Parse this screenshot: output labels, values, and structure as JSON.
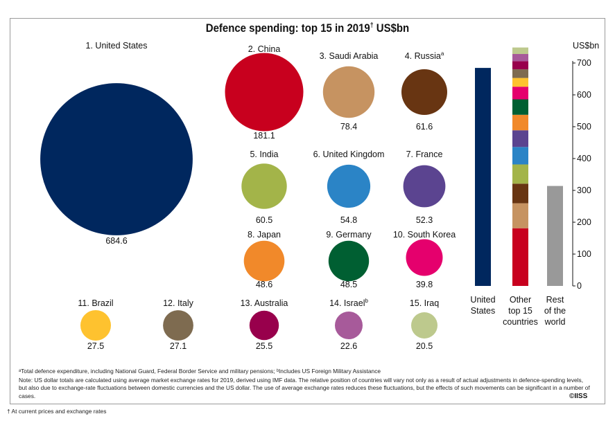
{
  "chart_data": {
    "type": "bubble",
    "title": "Defence spending: top 15 in 2019",
    "title_mark": "†",
    "unit": "US$bn",
    "bubbles": [
      {
        "rank": "1.",
        "name": "United States",
        "mark": "",
        "value": 684.6,
        "color": "#00275e"
      },
      {
        "rank": "2.",
        "name": "China",
        "mark": "",
        "value": 181.1,
        "color": "#c8001e"
      },
      {
        "rank": "3.",
        "name": "Saudi Arabia",
        "mark": "",
        "value": 78.4,
        "color": "#c69361"
      },
      {
        "rank": "4.",
        "name": "Russia",
        "mark": "a",
        "value": 61.6,
        "color": "#683512"
      },
      {
        "rank": "5.",
        "name": "India",
        "mark": "",
        "value": 60.5,
        "color": "#a3b449"
      },
      {
        "rank": "6.",
        "name": "United Kingdom",
        "mark": "",
        "value": 54.8,
        "color": "#2b84c6"
      },
      {
        "rank": "7.",
        "name": "France",
        "mark": "",
        "value": 52.3,
        "color": "#5b4490"
      },
      {
        "rank": "8.",
        "name": "Japan",
        "mark": "",
        "value": 48.6,
        "color": "#f1892a"
      },
      {
        "rank": "9.",
        "name": "Germany",
        "mark": "",
        "value": 48.5,
        "color": "#005f32"
      },
      {
        "rank": "10.",
        "name": "South Korea",
        "mark": "",
        "value": 39.8,
        "color": "#e5006d"
      },
      {
        "rank": "11.",
        "name": "Brazil",
        "mark": "",
        "value": 27.5,
        "color": "#fec22f"
      },
      {
        "rank": "12.",
        "name": "Italy",
        "mark": "",
        "value": 27.1,
        "color": "#7e6b50"
      },
      {
        "rank": "13.",
        "name": "Australia",
        "mark": "",
        "value": 25.5,
        "color": "#98004c"
      },
      {
        "rank": "14.",
        "name": "Israel",
        "mark": "b",
        "value": 22.6,
        "color": "#a75a9a"
      },
      {
        "rank": "15.",
        "name": "Iraq",
        "mark": "",
        "value": 20.5,
        "color": "#bdc98d"
      }
    ],
    "bar_chart": {
      "type": "stacked-bar",
      "ylabel": "US$bn",
      "ylim": [
        0,
        700
      ],
      "ticks": [
        0,
        100,
        200,
        300,
        400,
        500,
        600,
        700
      ],
      "bars": [
        {
          "label_lines": [
            "United",
            "States"
          ],
          "value": 684.6,
          "color": "#00275e"
        },
        {
          "label_lines": [
            "Other",
            "top 15",
            "countries"
          ],
          "stacked": true
        },
        {
          "label_lines": [
            "Rest",
            "of the",
            "world"
          ],
          "value": 314,
          "color": "#999999"
        }
      ]
    }
  },
  "notes": {
    "a": "ᵃTotal defence expenditure, including National Guard, Federal Border Service and military pensions; ᵇIncludes US Foreign Military Assistance",
    "main": "Note: US dollar totals are calculated using average market exchange rates for 2019, derived using IMF data. The relative position of countries will vary not only as a result of actual adjustments in defence-spending levels, but also due to exchange-rate fluctuations between domestic currencies and the US dollar. The use of average exchange rates reduces these fluctuations, but the effects of such movements can be significant in a number of cases.",
    "copyright": "©IISS",
    "dagger": "† At current prices and exchange rates"
  }
}
